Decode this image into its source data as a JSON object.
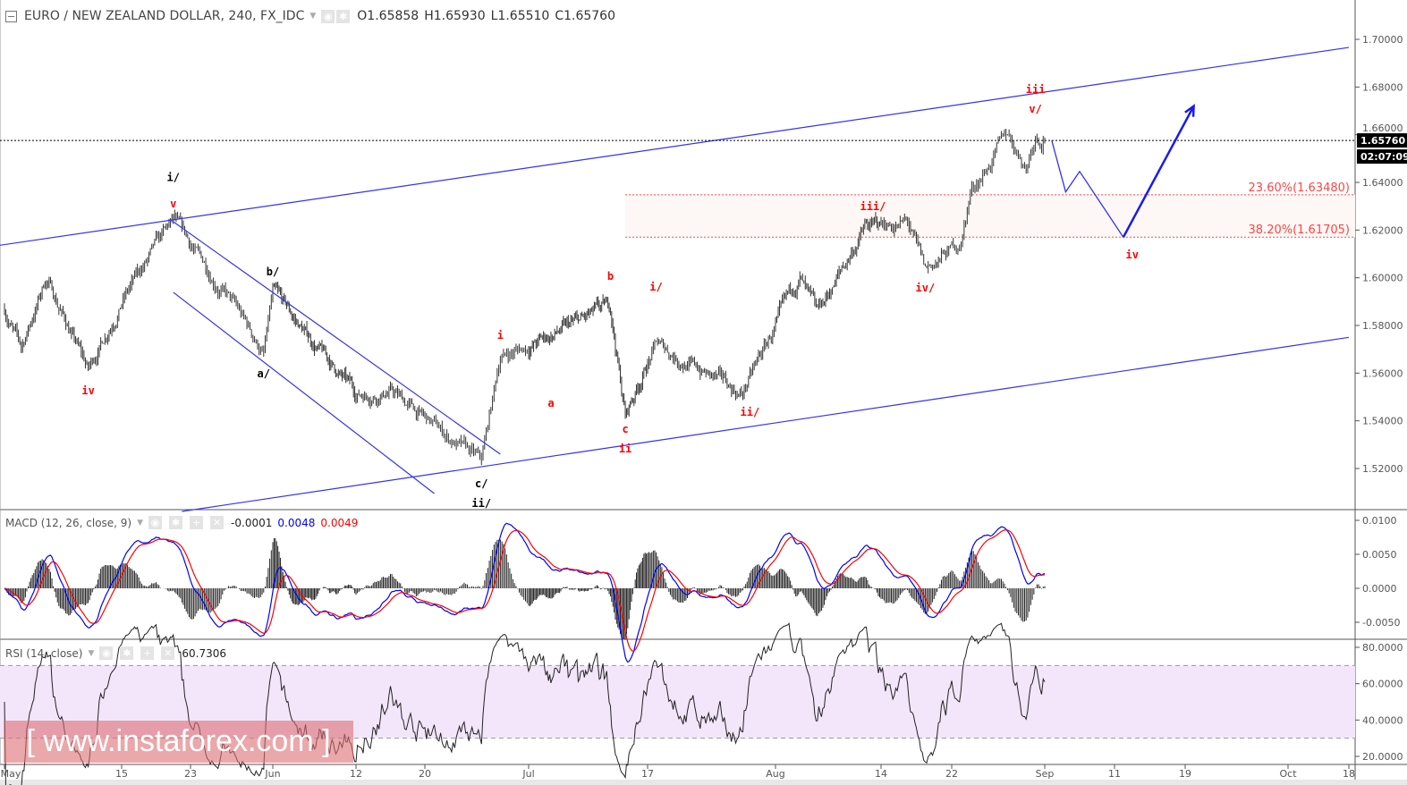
{
  "header": {
    "title": "EURO / NEW ZEALAND DOLLAR, 240, FX_IDC",
    "open": "O1.65858",
    "high": "H1.65930",
    "low": "L1.65510",
    "close": "C1.65760"
  },
  "macd_legend": {
    "title": "MACD (12, 26, close, 9)",
    "hist": "-0.0001",
    "macd": "0.0048",
    "signal": "0.0049"
  },
  "rsi_legend": {
    "title": "RSI (14, close)",
    "value": "60.7306"
  },
  "watermark": "[ www.instaforex.com ]",
  "colors": {
    "macd": "#0000ff",
    "signal": "#ff0000",
    "channel": "#3333ee",
    "fib": "#ff4444",
    "rsi_band": "#f3e6fb",
    "wave_red": "#ff0000",
    "wave_black": "#000000"
  },
  "chart_data": {
    "type": "ohlc",
    "symbol": "EURO / NEW ZEALAND DOLLAR",
    "interval": "240",
    "price_ticks": [
      "1.70000",
      "1.68000",
      "1.66000",
      "1.64000",
      "1.62000",
      "1.60000",
      "1.58000",
      "1.56000",
      "1.54000",
      "1.52000"
    ],
    "ylim": [
      1.505,
      1.716
    ],
    "last_price": "1.65760",
    "countdown": "02:07:09",
    "x_ticks": [
      {
        "label": "May",
        "date": "05-01"
      },
      {
        "label": "15",
        "date": "05-15"
      },
      {
        "label": "23",
        "date": "05-23"
      },
      {
        "label": "Jun",
        "date": "06-01"
      },
      {
        "label": "12",
        "date": "06-12"
      },
      {
        "label": "20",
        "date": "06-20"
      },
      {
        "label": "Jul",
        "date": "07-01"
      },
      {
        "label": "17",
        "date": "07-17"
      },
      {
        "label": "Aug",
        "date": "08-01"
      },
      {
        "label": "14",
        "date": "08-14"
      },
      {
        "label": "22",
        "date": "08-22"
      },
      {
        "label": "Sep",
        "date": "09-01"
      },
      {
        "label": "11",
        "date": "09-11"
      },
      {
        "label": "19",
        "date": "09-19"
      },
      {
        "label": "Oct",
        "date": "10-01"
      },
      {
        "label": "18",
        "date": "10-18"
      }
    ],
    "price_path": [
      [
        "05-01",
        1.587
      ],
      [
        "05-03",
        1.57
      ],
      [
        "05-06",
        1.6
      ],
      [
        "05-11",
        1.561
      ],
      [
        "05-15",
        1.591
      ],
      [
        "05-21",
        1.623
      ],
      [
        "05-27",
        1.593
      ],
      [
        "05-31",
        1.568
      ],
      [
        "06-01",
        1.593
      ],
      [
        "06-12",
        1.551
      ],
      [
        "06-16",
        1.553
      ],
      [
        "06-26",
        1.522
      ],
      [
        "06-28",
        1.567
      ],
      [
        "07-12",
        1.587
      ],
      [
        "07-14",
        1.542
      ],
      [
        "07-18",
        1.572
      ],
      [
        "07-28",
        1.551
      ],
      [
        "08-04",
        1.6
      ],
      [
        "08-06",
        1.583
      ],
      [
        "08-12",
        1.621
      ],
      [
        "08-17",
        1.623
      ],
      [
        "08-19",
        1.602
      ],
      [
        "08-23",
        1.615
      ],
      [
        "08-24",
        1.636
      ],
      [
        "08-28",
        1.66
      ],
      [
        "08-30",
        1.647
      ],
      [
        "08-31",
        1.661
      ],
      [
        "09-01",
        1.6576
      ]
    ],
    "channels": [
      {
        "from": [
          "04-30",
          1.6134
        ],
        "to": [
          "10-18",
          1.6966
        ]
      },
      {
        "from": [
          "05-22",
          1.502
        ],
        "to": [
          "10-18",
          1.575
        ]
      },
      {
        "from": [
          "05-21",
          1.6235
        ],
        "to": [
          "06-28",
          1.526
        ]
      },
      {
        "from": [
          "05-21",
          1.5939
        ],
        "to": [
          "06-21",
          1.5095
        ]
      }
    ],
    "fibonacci": [
      {
        "label": "23.60%(1.63480)",
        "price": 1.6348
      },
      {
        "label": "38.20%(1.61705)",
        "price": 1.61705
      }
    ],
    "fib_start": "07-14",
    "projection": [
      [
        "09-02",
        1.6576
      ],
      [
        "09-04",
        1.636
      ],
      [
        "09-06",
        1.6446
      ],
      [
        "09-12",
        1.617
      ],
      [
        "09-20",
        1.672
      ]
    ],
    "wave_labels": [
      {
        "text": "iv",
        "color": "red",
        "date": "05-11",
        "price": 1.5526
      },
      {
        "text": "v",
        "color": "red",
        "date": "05-21",
        "price": 1.631
      },
      {
        "text": "i/",
        "color": "black",
        "date": "05-21",
        "price": 1.642
      },
      {
        "text": "b/",
        "color": "black",
        "date": "06-01",
        "price": 1.6025
      },
      {
        "text": "a/",
        "color": "black",
        "date": "05-31",
        "price": 1.5598
      },
      {
        "text": "c/",
        "color": "black",
        "date": "06-26",
        "price": 1.5136
      },
      {
        "text": "ii/",
        "color": "black",
        "date": "06-26",
        "price": 1.5054
      },
      {
        "text": "i",
        "color": "red",
        "date": "06-28",
        "price": 1.5759
      },
      {
        "text": "a",
        "color": "red",
        "date": "07-04",
        "price": 1.5474
      },
      {
        "text": "b",
        "color": "red",
        "date": "07-12",
        "price": 1.6006
      },
      {
        "text": "c",
        "color": "red",
        "date": "07-14",
        "price": 1.5365
      },
      {
        "text": "ii",
        "color": "red",
        "date": "07-14",
        "price": 1.5283
      },
      {
        "text": "i/",
        "color": "red",
        "date": "07-18",
        "price": 1.5961
      },
      {
        "text": "ii/",
        "color": "red",
        "date": "07-29",
        "price": 1.5436
      },
      {
        "text": "iii/",
        "color": "red",
        "date": "08-13",
        "price": 1.6299
      },
      {
        "text": "iv/",
        "color": "red",
        "date": "08-19",
        "price": 1.5957
      },
      {
        "text": "iii",
        "color": "red",
        "date": "08-31",
        "price": 1.679
      },
      {
        "text": "v/",
        "color": "red",
        "date": "08-31",
        "price": 1.6707
      },
      {
        "text": "iv",
        "color": "red",
        "date": "09-13",
        "price": 1.6096
      }
    ],
    "macd": {
      "params": [
        12,
        26,
        9
      ],
      "ticks": [
        "0.0100",
        "0.0050",
        "0.0000",
        "-0.0050"
      ],
      "ylim": [
        -0.0075,
        0.0115
      ]
    },
    "rsi": {
      "period": 14,
      "ticks": [
        "80.0000",
        "60.0000",
        "40.0000",
        "20.0000"
      ],
      "band": [
        30,
        70
      ],
      "ylim": [
        13,
        87
      ]
    }
  }
}
